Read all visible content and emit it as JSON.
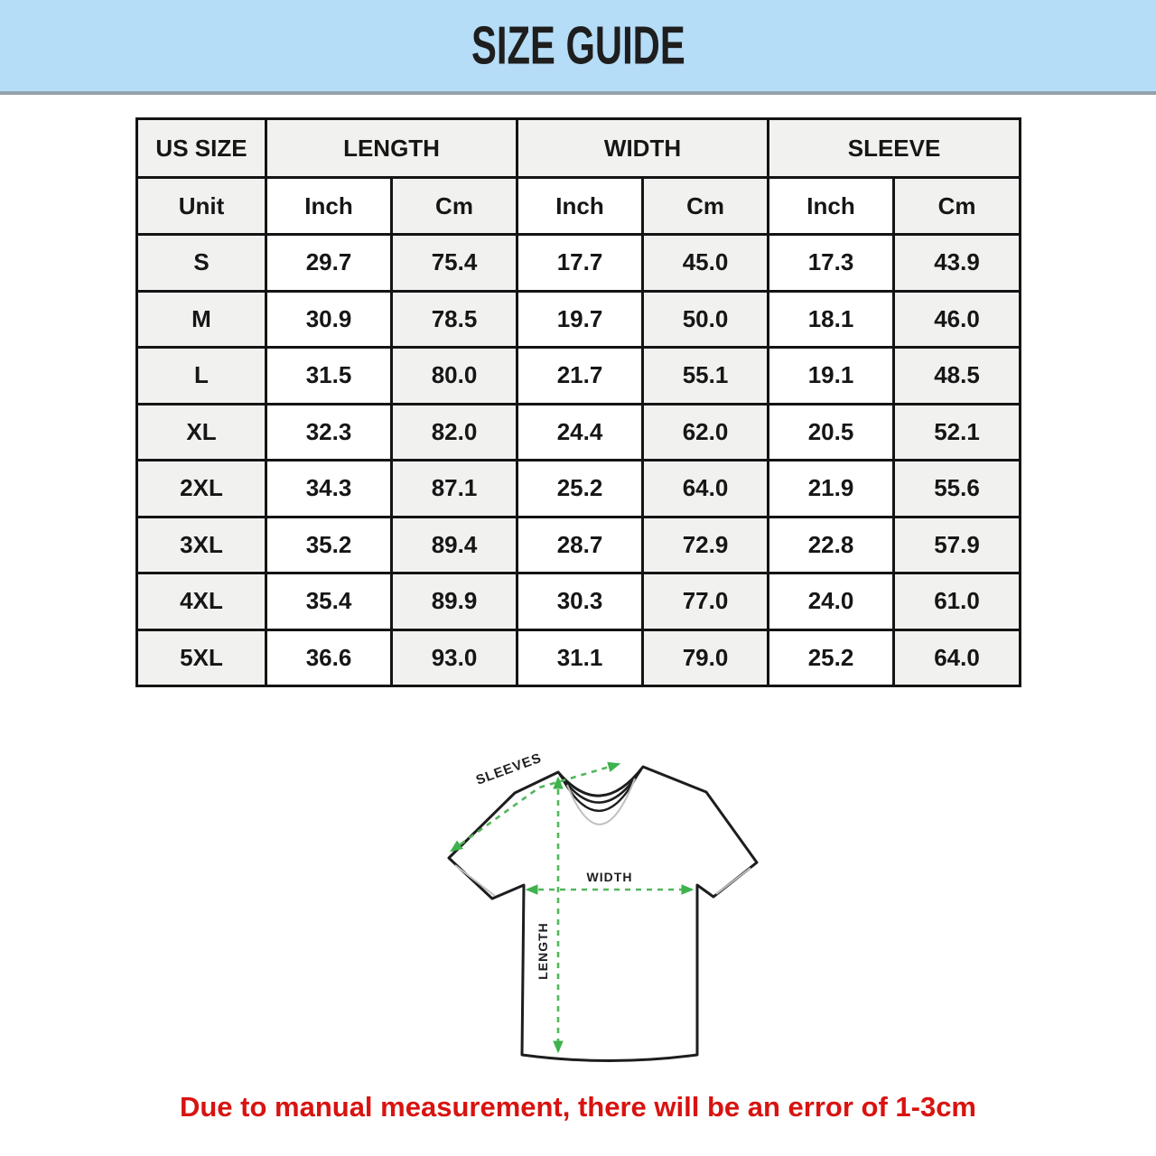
{
  "header": {
    "title": "SIZE GUIDE"
  },
  "table": {
    "group_headers": [
      {
        "label": "US SIZE"
      },
      {
        "label": "LENGTH"
      },
      {
        "label": "WIDTH"
      },
      {
        "label": "SLEEVE"
      }
    ],
    "unit_row": [
      "Unit",
      "Inch",
      "Cm",
      "Inch",
      "Cm",
      "Inch",
      "Cm"
    ],
    "rows": [
      {
        "size": "S",
        "values": [
          "29.7",
          "75.4",
          "17.7",
          "45.0",
          "17.3",
          "43.9"
        ]
      },
      {
        "size": "M",
        "values": [
          "30.9",
          "78.5",
          "19.7",
          "50.0",
          "18.1",
          "46.0"
        ]
      },
      {
        "size": "L",
        "values": [
          "31.5",
          "80.0",
          "21.7",
          "55.1",
          "19.1",
          "48.5"
        ]
      },
      {
        "size": "XL",
        "values": [
          "32.3",
          "82.0",
          "24.4",
          "62.0",
          "20.5",
          "52.1"
        ]
      },
      {
        "size": "2XL",
        "values": [
          "34.3",
          "87.1",
          "25.2",
          "64.0",
          "21.9",
          "55.6"
        ]
      },
      {
        "size": "3XL",
        "values": [
          "35.2",
          "89.4",
          "28.7",
          "72.9",
          "22.8",
          "57.9"
        ]
      },
      {
        "size": "4XL",
        "values": [
          "35.4",
          "89.9",
          "30.3",
          "77.0",
          "24.0",
          "61.0"
        ]
      },
      {
        "size": "5XL",
        "values": [
          "36.6",
          "93.0",
          "31.1",
          "79.0",
          "25.2",
          "64.0"
        ]
      }
    ]
  },
  "diagram": {
    "sleeves_label": "SLEEVES",
    "width_label": "WIDTH",
    "length_label": "LENGTH"
  },
  "footer": {
    "note": "Due to manual measurement, there will be an error of 1-3cm"
  },
  "colors": {
    "banner_blue": "#b6ddf7",
    "banner_edge_gray": "#93a2ab",
    "table_border_black": "#141414",
    "cell_shade_gray": "#f1f1f0",
    "measure_green": "#52b65a",
    "arrow_green": "#3db24d",
    "note_red": "#d81310",
    "shirt_outline": "#1d1d1d",
    "seam_gray": "#bfbfbf"
  }
}
